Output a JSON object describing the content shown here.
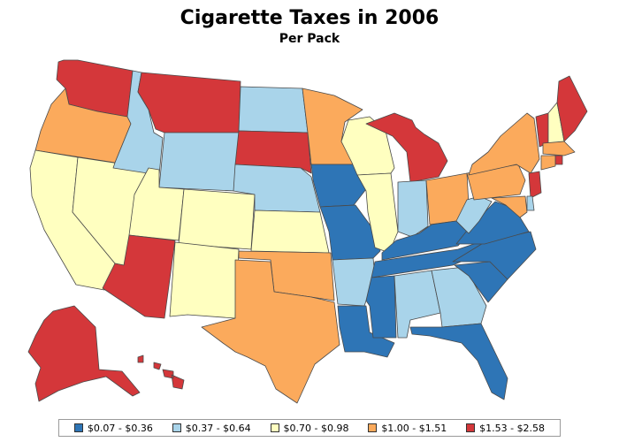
{
  "title": "Cigarette Taxes in 2006",
  "subtitle": "Per Pack",
  "legend": [
    {
      "label": "$0.07 - $0.36",
      "color": "#2e75b6"
    },
    {
      "label": "$0.37 - $0.64",
      "color": "#a9d4ea"
    },
    {
      "label": "$0.70 - $0.98",
      "color": "#ffffc0"
    },
    {
      "label": "$1.00 - $1.51",
      "color": "#fbaa5c"
    },
    {
      "label": "$1.53 - $2.58",
      "color": "#d4373a"
    }
  ],
  "states": [
    {
      "name": "WA",
      "class": 4
    },
    {
      "name": "OR",
      "class": 3
    },
    {
      "name": "CA",
      "class": 2
    },
    {
      "name": "NV",
      "class": 2
    },
    {
      "name": "ID",
      "class": 1
    },
    {
      "name": "MT",
      "class": 4
    },
    {
      "name": "WY",
      "class": 1
    },
    {
      "name": "UT",
      "class": 2
    },
    {
      "name": "AZ",
      "class": 4
    },
    {
      "name": "CO",
      "class": 2
    },
    {
      "name": "NM",
      "class": 2
    },
    {
      "name": "ND",
      "class": 1
    },
    {
      "name": "SD",
      "class": 4
    },
    {
      "name": "NE",
      "class": 1
    },
    {
      "name": "KS",
      "class": 2
    },
    {
      "name": "OK",
      "class": 3
    },
    {
      "name": "TX",
      "class": 3
    },
    {
      "name": "MN",
      "class": 3
    },
    {
      "name": "IA",
      "class": 0
    },
    {
      "name": "MO",
      "class": 0
    },
    {
      "name": "AR",
      "class": 1
    },
    {
      "name": "LA",
      "class": 0
    },
    {
      "name": "WI",
      "class": 2
    },
    {
      "name": "IL",
      "class": 2
    },
    {
      "name": "MI",
      "class": 4
    },
    {
      "name": "IN",
      "class": 1
    },
    {
      "name": "OH",
      "class": 3
    },
    {
      "name": "KY",
      "class": 0
    },
    {
      "name": "TN",
      "class": 0
    },
    {
      "name": "MS",
      "class": 0
    },
    {
      "name": "AL",
      "class": 1
    },
    {
      "name": "GA",
      "class": 1
    },
    {
      "name": "FL",
      "class": 0
    },
    {
      "name": "SC",
      "class": 0
    },
    {
      "name": "NC",
      "class": 0
    },
    {
      "name": "VA",
      "class": 0
    },
    {
      "name": "WV",
      "class": 1
    },
    {
      "name": "PA",
      "class": 3
    },
    {
      "name": "NY",
      "class": 3
    },
    {
      "name": "VT",
      "class": 4
    },
    {
      "name": "NH",
      "class": 2
    },
    {
      "name": "ME",
      "class": 4
    },
    {
      "name": "MA",
      "class": 3
    },
    {
      "name": "RI",
      "class": 4
    },
    {
      "name": "CT",
      "class": 3
    },
    {
      "name": "NJ",
      "class": 4
    },
    {
      "name": "DE",
      "class": 1
    },
    {
      "name": "MD",
      "class": 3
    },
    {
      "name": "AK",
      "class": 4
    },
    {
      "name": "HI",
      "class": 4
    }
  ]
}
